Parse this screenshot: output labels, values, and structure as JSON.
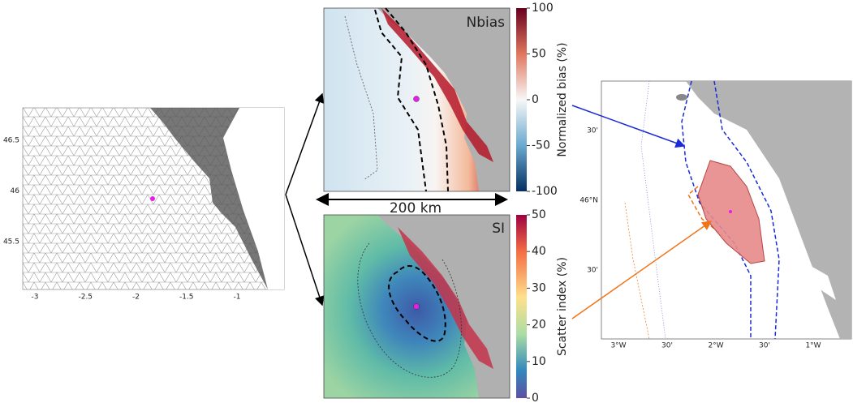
{
  "mesh_panel": {
    "y_ticks": [
      46.5,
      46,
      45.5
    ],
    "x_ticks": [
      -3,
      -2.5,
      -2,
      -1.5,
      -1
    ]
  },
  "nbias_panel": {
    "label": "Nbias",
    "colorbar_ticks": [
      100,
      50,
      0,
      -50,
      -100
    ],
    "colorbar_label": "Normalized bias (%)"
  },
  "scale_bar": "200 km",
  "si_panel": {
    "label": "SI",
    "colorbar_ticks": [
      50,
      40,
      30,
      20,
      10,
      0
    ],
    "colorbar_label": "Scatter index (%)"
  },
  "zoom_map": {
    "y_ticks": [
      "30'",
      "46°N",
      "30'"
    ],
    "x_ticks": [
      "3°W",
      "30'",
      "2°W",
      "30'",
      "1°W"
    ]
  }
}
